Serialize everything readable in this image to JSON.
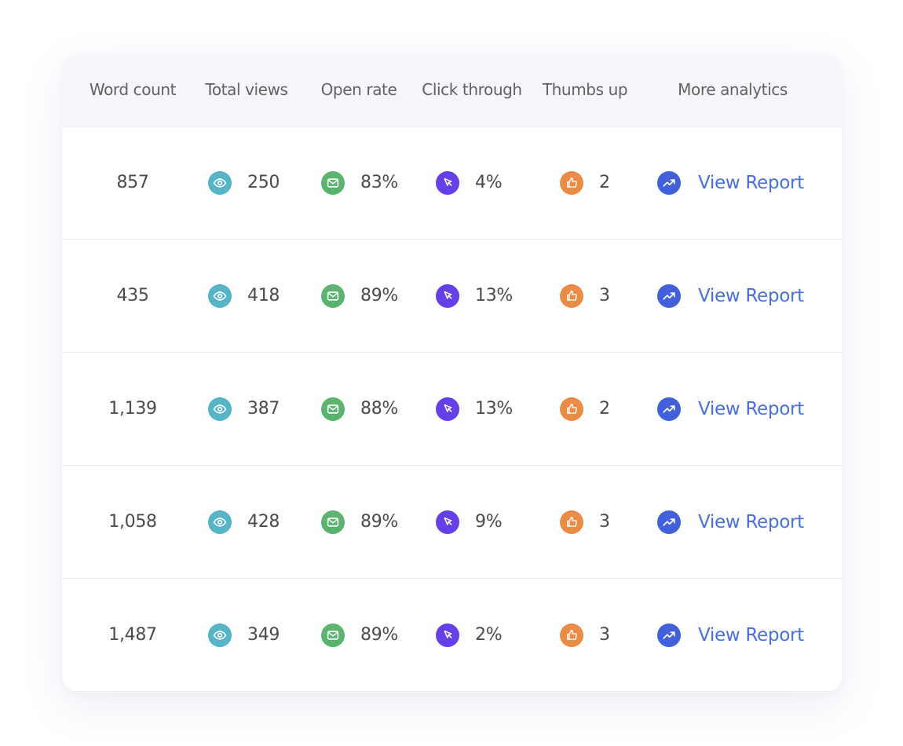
{
  "columns": {
    "word_count": "Word count",
    "total_views": "Total views",
    "open_rate": "Open rate",
    "click_through": "Click through",
    "thumbs_up": "Thumbs up",
    "more_analytics": "More analytics"
  },
  "icons": {
    "views": {
      "name": "eye-icon",
      "color": "#54b3c6"
    },
    "open_rate": {
      "name": "mail-icon",
      "color": "#59b46e"
    },
    "click_through": {
      "name": "cursor-icon",
      "color": "#6440e6"
    },
    "thumbs_up": {
      "name": "thumbs-up-icon",
      "color": "#eb8c46"
    },
    "report": {
      "name": "trend-up-icon",
      "color": "#4060dc"
    }
  },
  "link_color": "#4a6fdb",
  "rows": [
    {
      "word_count": "857",
      "total_views": "250",
      "open_rate": "83%",
      "click_through": "4%",
      "thumbs_up": "2",
      "report_label": "View Report"
    },
    {
      "word_count": "435",
      "total_views": "418",
      "open_rate": "89%",
      "click_through": "13%",
      "thumbs_up": "3",
      "report_label": "View Report"
    },
    {
      "word_count": "1,139",
      "total_views": "387",
      "open_rate": "88%",
      "click_through": "13%",
      "thumbs_up": "2",
      "report_label": "View Report"
    },
    {
      "word_count": "1,058",
      "total_views": "428",
      "open_rate": "89%",
      "click_through": "9%",
      "thumbs_up": "3",
      "report_label": "View Report"
    },
    {
      "word_count": "1,487",
      "total_views": "349",
      "open_rate": "89%",
      "click_through": "2%",
      "thumbs_up": "3",
      "report_label": "View Report"
    }
  ]
}
